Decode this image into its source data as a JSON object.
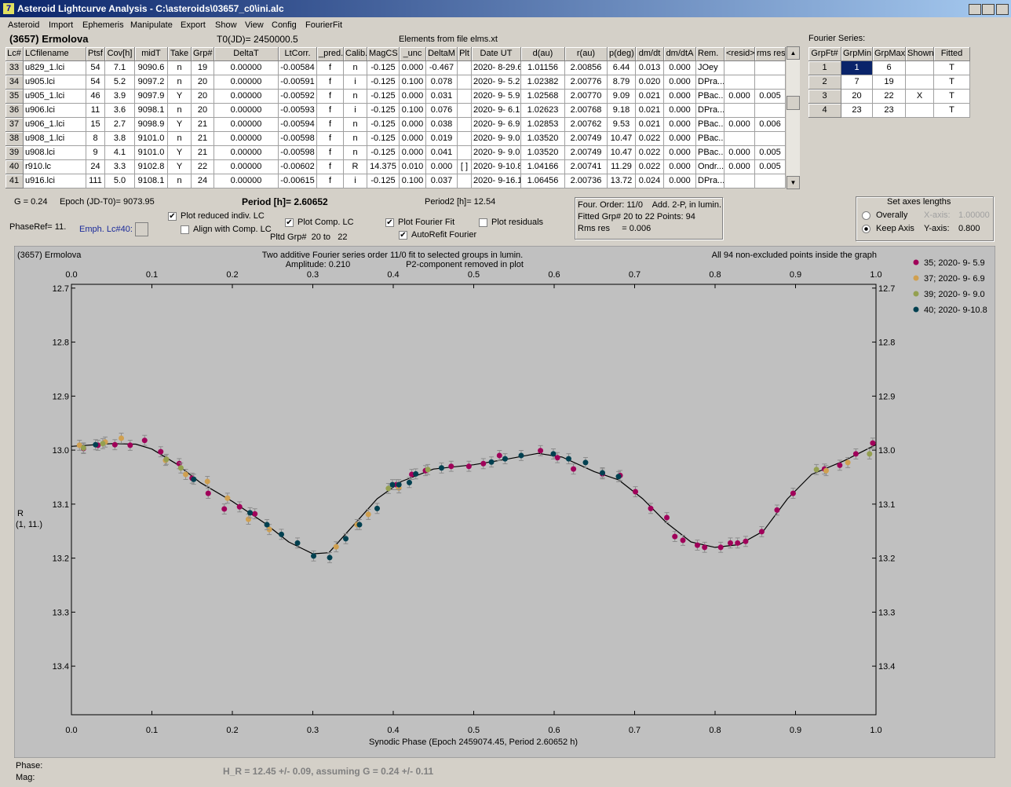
{
  "window": {
    "title": "Asteroid Lightcurve Analysis - C:\\asteroids\\03657_c0\\ini.alc"
  },
  "menu": [
    "Asteroid",
    "Import",
    "Ephemeris",
    "Manipulate",
    "Export",
    "Show",
    "View",
    "Config",
    "FourierFit"
  ],
  "header": {
    "name": "(3657) Ermolova",
    "t0": "T0(JD)= 2450000.5",
    "elements": "Elements from file elms.xt"
  },
  "lc_table": {
    "columns": [
      "Lc#",
      "LCfilename",
      "Ptsf",
      "Cov[h]",
      "midT",
      "Take",
      "Grp#",
      "DeltaT",
      "LtCorr.",
      "_pred.",
      "Calib.",
      "MagCS",
      "_unc",
      "DeltaM",
      "Plt",
      "Date UT",
      "d(au)",
      "r(au)",
      "p(deg)",
      "dm/dt",
      "dm/dtA",
      "Rem.",
      "<resid>",
      "rms res"
    ],
    "rows": [
      [
        "33",
        "u829_1.lci",
        "54",
        "7.1",
        "9090.6",
        "n",
        "19",
        "0.00000",
        "-0.00584",
        "f",
        "n",
        "-0.125",
        "0.000",
        "-0.467",
        null,
        "2020- 8-29.6",
        "1.01156",
        "2.00856",
        "6.44",
        "0.013",
        "0.000",
        "JOey",
        null,
        null
      ],
      [
        "34",
        "u905.lci",
        "54",
        "5.2",
        "9097.2",
        "n",
        "20",
        "0.00000",
        "-0.00591",
        "f",
        "i",
        "-0.125",
        "0.100",
        "0.078",
        null,
        "2020- 9- 5.2",
        "1.02382",
        "2.00776",
        "8.79",
        "0.020",
        "0.000",
        "DPra...",
        null,
        null
      ],
      [
        "35",
        "u905_1.lci",
        "46",
        "3.9",
        "9097.9",
        "Y",
        "20",
        "0.00000",
        "-0.00592",
        "f",
        "n",
        "-0.125",
        "0.000",
        "0.031",
        null,
        "2020- 9- 5.9",
        "1.02568",
        "2.00770",
        "9.09",
        "0.021",
        "0.000",
        "PBac...",
        "0.000",
        "0.005"
      ],
      [
        "36",
        "u906.lci",
        "11",
        "3.6",
        "9098.1",
        "n",
        "20",
        "0.00000",
        "-0.00593",
        "f",
        "i",
        "-0.125",
        "0.100",
        "0.076",
        null,
        "2020- 9- 6.1",
        "1.02623",
        "2.00768",
        "9.18",
        "0.021",
        "0.000",
        "DPra...",
        null,
        null
      ],
      [
        "37",
        "u906_1.lci",
        "15",
        "2.7",
        "9098.9",
        "Y",
        "21",
        "0.00000",
        "-0.00594",
        "f",
        "n",
        "-0.125",
        "0.000",
        "0.038",
        null,
        "2020- 9- 6.9",
        "1.02853",
        "2.00762",
        "9.53",
        "0.021",
        "0.000",
        "PBac...",
        "0.000",
        "0.006"
      ],
      [
        "38",
        "u908_1.lci",
        "8",
        "3.8",
        "9101.0",
        "n",
        "21",
        "0.00000",
        "-0.00598",
        "f",
        "n",
        "-0.125",
        "0.000",
        "0.019",
        null,
        "2020- 9- 9.0",
        "1.03520",
        "2.00749",
        "10.47",
        "0.022",
        "0.000",
        "PBac...",
        null,
        null
      ],
      [
        "39",
        "u908.lci",
        "9",
        "4.1",
        "9101.0",
        "Y",
        "21",
        "0.00000",
        "-0.00598",
        "f",
        "n",
        "-0.125",
        "0.000",
        "0.041",
        null,
        "2020- 9- 9.0",
        "1.03520",
        "2.00749",
        "10.47",
        "0.022",
        "0.000",
        "PBac...",
        "0.000",
        "0.005"
      ],
      [
        "40",
        "r910.lc",
        "24",
        "3.3",
        "9102.8",
        "Y",
        "22",
        "0.00000",
        "-0.00602",
        "f",
        "R",
        "14.375",
        "0.010",
        "0.000",
        "[ ]",
        "2020- 9-10.8",
        "1.04166",
        "2.00741",
        "11.29",
        "0.022",
        "0.000",
        "Ondr...",
        "0.000",
        "0.005"
      ],
      [
        "41",
        "u916.lci",
        "111",
        "5.0",
        "9108.1",
        "n",
        "24",
        "0.00000",
        "-0.00615",
        "f",
        "i",
        "-0.125",
        "0.100",
        "0.037",
        null,
        "2020- 9-16.1",
        "1.06456",
        "2.00736",
        "13.72",
        "0.024",
        "0.000",
        "DPra...",
        null,
        null
      ]
    ]
  },
  "fourier_table": {
    "label": "Fourier Series:",
    "columns": [
      "GrpFt#",
      "GrpMin",
      "GrpMax",
      "Shown",
      "Fitted"
    ],
    "rows": [
      [
        "1",
        "1",
        "6",
        null,
        "T"
      ],
      [
        "2",
        "7",
        "19",
        null,
        "T"
      ],
      [
        "3",
        "20",
        "22",
        "X",
        "T"
      ],
      [
        "4",
        "23",
        "23",
        null,
        "T"
      ]
    ]
  },
  "info": {
    "g": "G = 0.24",
    "epoch": "Epoch (JD-T0)= 9073.95",
    "period": "Period [h]= 2.60652",
    "period2": "Period2 [h]= 12.54",
    "phaseref": "PhaseRef= 11.",
    "emph": "Emph. Lc#40:",
    "pltd": "Pltd Grp#  20 to   22"
  },
  "checkboxes": [
    {
      "label": "Plot reduced indiv. LC",
      "checked": true
    },
    {
      "label": "Align with Comp. LC",
      "checked": false
    },
    {
      "label": "Plot Comp. LC",
      "checked": true
    },
    {
      "label": "Plot Fourier Fit",
      "checked": true
    },
    {
      "label": "Plot residuals",
      "checked": false
    },
    {
      "label": "AutoRefit Fourier",
      "checked": true
    }
  ],
  "fit_info": [
    "Four. Order: 11/0    Add. 2-P, in lumin.",
    "Fitted Grp# 20 to 22 Points: 94",
    "Rms res     = 0.006"
  ],
  "axes_box": {
    "title": "Set axes lengths",
    "radios": [
      {
        "label": "Overally",
        "checked": false
      },
      {
        "label": "Keep Axis",
        "checked": true
      }
    ],
    "x_label": "X-axis:",
    "x_value": "1.00000",
    "y_label": "Y-axis:",
    "y_value": "0.800"
  },
  "chart_data": {
    "type": "scatter",
    "title": "(3657) Ermolova",
    "subtitle": [
      "Two additive Fourier series order 11/0 fit to selected groups in lumin.",
      "Amplitude: 0.210",
      "P2-component removed in plot"
    ],
    "annotation": "All 94 non-excluded points inside the graph",
    "xlabel": "Synodic Phase (Epoch 2459074.45, Period 2.60652 h)",
    "ylabel": [
      "R",
      "(1, 11.)"
    ],
    "xlim": [
      0,
      1
    ],
    "ylim": [
      12.693,
      13.49
    ],
    "y_inverted": true,
    "xticks": [
      {
        "value": 0,
        "label": "0.0"
      },
      0.1,
      0.2,
      0.3,
      0.4,
      0.5,
      0.6,
      0.7,
      0.8,
      0.9,
      {
        "value": 1,
        "label": "1.0"
      }
    ],
    "yticks": [
      12.7,
      12.8,
      12.9,
      {
        "value": 13,
        "label": "13.0"
      },
      13.1,
      13.2,
      13.3,
      13.4
    ],
    "series": [
      {
        "name": "35; 2020- 9- 5.9",
        "color": "#a0005a",
        "error": 0.005,
        "x": [
          0.015,
          0.033,
          0.054,
          0.073,
          0.091,
          0.111,
          0.134,
          0.15,
          0.17,
          0.19,
          0.209,
          0.228,
          0.404,
          0.423,
          0.44,
          0.472,
          0.494,
          0.512,
          0.532,
          0.583,
          0.604,
          0.624,
          0.66,
          0.682,
          0.701,
          0.72,
          0.74,
          0.75,
          0.76,
          0.778,
          0.787,
          0.807,
          0.819,
          0.828,
          0.838,
          0.858,
          0.877,
          0.897,
          0.936,
          0.955,
          0.975,
          0.996
        ],
        "values": [
          12.997,
          12.991,
          12.99,
          12.991,
          12.982,
          13.003,
          13.025,
          13.052,
          13.08,
          13.109,
          13.105,
          13.118,
          13.064,
          13.045,
          13.038,
          13.03,
          13.03,
          13.025,
          13.01,
          13.001,
          13.014,
          13.035,
          13.044,
          13.047,
          13.077,
          13.108,
          13.125,
          13.16,
          13.167,
          13.176,
          13.18,
          13.18,
          13.172,
          13.172,
          13.169,
          13.151,
          13.111,
          13.08,
          13.035,
          13.028,
          13.007,
          12.987
        ]
      },
      {
        "name": "37; 2020- 9- 6.9",
        "color": "#d0a050",
        "error": 0.005,
        "x": [
          0.01,
          0.042,
          0.062,
          0.117,
          0.142,
          0.169,
          0.194,
          0.22,
          0.246,
          0.329,
          0.355,
          0.369,
          0.407,
          0.938,
          0.965
        ],
        "values": [
          12.991,
          12.985,
          12.978,
          13.019,
          13.045,
          13.058,
          13.089,
          13.128,
          13.147,
          13.179,
          13.138,
          13.119,
          13.07,
          13.038,
          13.023
        ]
      },
      {
        "name": "39; 2020- 9- 9.0",
        "color": "#94a050",
        "error": 0.005,
        "x": [
          0.015,
          0.039,
          0.118,
          0.136,
          0.394,
          0.443,
          0.926,
          0.992
        ],
        "values": [
          12.996,
          12.988,
          13.017,
          13.033,
          13.071,
          13.036,
          13.036,
          13.007
        ]
      },
      {
        "name": "40; 2020- 9-10.8",
        "color": "#004050",
        "error": 0.005,
        "x": [
          0.03,
          0.152,
          0.222,
          0.243,
          0.261,
          0.281,
          0.301,
          0.321,
          0.341,
          0.358,
          0.38,
          0.399,
          0.407,
          0.42,
          0.428,
          0.46,
          0.522,
          0.539,
          0.559,
          0.599,
          0.618,
          0.639,
          0.66,
          0.68
        ],
        "values": [
          12.99,
          13.054,
          13.116,
          13.138,
          13.156,
          13.172,
          13.196,
          13.199,
          13.164,
          13.138,
          13.108,
          13.064,
          13.064,
          13.06,
          13.044,
          13.033,
          13.022,
          13.016,
          13.01,
          13.007,
          13.016,
          13.023,
          13.042,
          13.049
        ]
      }
    ],
    "curve": {
      "color": "#000000",
      "x": [
        0,
        0.05,
        0.08,
        0.1,
        0.13,
        0.16,
        0.2,
        0.24,
        0.27,
        0.3,
        0.32,
        0.35,
        0.38,
        0.41,
        0.45,
        0.5,
        0.54,
        0.58,
        0.61,
        0.65,
        0.68,
        0.71,
        0.74,
        0.77,
        0.8,
        0.83,
        0.86,
        0.89,
        0.92,
        0.96,
        1
      ],
      "values": [
        12.993,
        12.988,
        12.989,
        12.998,
        13.025,
        13.06,
        13.095,
        13.135,
        13.17,
        13.192,
        13.19,
        13.14,
        13.09,
        13.058,
        13.035,
        13.027,
        13.017,
        13.006,
        13.013,
        13.04,
        13.055,
        13.09,
        13.135,
        13.17,
        13.18,
        13.175,
        13.15,
        13.09,
        13.045,
        13.02,
        12.99
      ]
    }
  },
  "footer": {
    "phase": "Phase:",
    "mag": "Mag:",
    "h_result": "H_R = 12.45 +/- 0.09, assuming G = 0.24 +/- 0.11"
  }
}
